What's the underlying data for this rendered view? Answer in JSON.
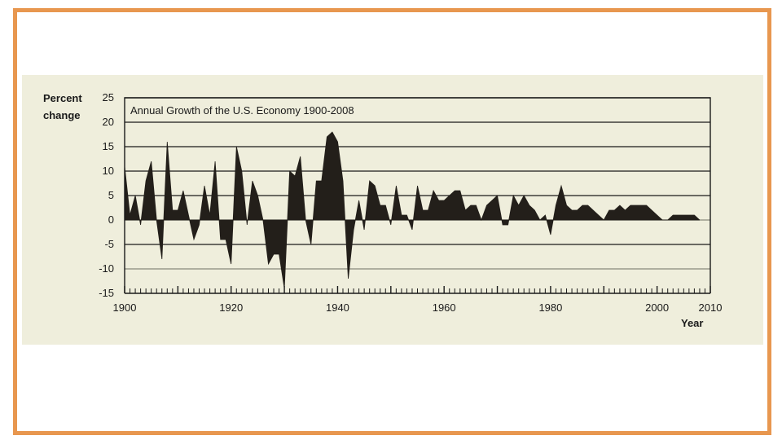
{
  "chart_data": {
    "type": "area",
    "title": "Annual Growth of the U.S. Economy 1900-2008",
    "ylabel_line1": "Percent",
    "ylabel_line2": "change",
    "xlabel": "Year",
    "xlim": [
      1900,
      2010
    ],
    "ylim": [
      -15,
      25
    ],
    "x_ticks": [
      1900,
      1920,
      1940,
      1960,
      1980,
      2000,
      2010
    ],
    "y_ticks": [
      25,
      20,
      15,
      10,
      5,
      0,
      -5,
      -10,
      -15
    ],
    "grid": true,
    "colors": {
      "fill": "#231F1A",
      "grid": "#1a1a1a",
      "background": "#EFEEDC",
      "frame": "#E8974F"
    },
    "series": [
      {
        "x": [
          1900,
          1901,
          1902,
          1903,
          1904,
          1905,
          1906,
          1907,
          1908,
          1909,
          1910,
          1911,
          1912,
          1913,
          1914,
          1915,
          1916,
          1917,
          1918,
          1919,
          1920,
          1921,
          1922,
          1923,
          1924,
          1925,
          1926,
          1927,
          1928,
          1929,
          1930,
          1931,
          1932,
          1933,
          1934,
          1935,
          1936,
          1937,
          1938,
          1939,
          1940,
          1941,
          1942,
          1943,
          1944,
          1945,
          1946,
          1947,
          1948,
          1949,
          1950,
          1951,
          1952,
          1953,
          1954,
          1955,
          1956,
          1957,
          1958,
          1959,
          1960,
          1961,
          1962,
          1963,
          1964,
          1965,
          1966,
          1967,
          1968,
          1969,
          1970,
          1971,
          1972,
          1973,
          1974,
          1975,
          1976,
          1977,
          1978,
          1979,
          1980,
          1981,
          1982,
          1983,
          1984,
          1985,
          1986,
          1987,
          1988,
          1989,
          1990,
          1991,
          1992,
          1993,
          1994,
          1995,
          1996,
          1997,
          1998,
          1999,
          2000,
          2001,
          2002,
          2003,
          2004,
          2005,
          2006,
          2007,
          2008
        ],
        "y": [
          11,
          1,
          5,
          -1,
          8,
          12,
          0,
          -8,
          16,
          2,
          2,
          6,
          1,
          -4,
          -1,
          7,
          1,
          12,
          -4,
          -4,
          -9,
          15,
          10,
          -1,
          8,
          5,
          0,
          -9,
          -7,
          -7,
          -14,
          10,
          9,
          13,
          0,
          -5,
          8,
          8,
          17,
          18,
          16,
          8,
          -12,
          -2,
          4,
          -2,
          8,
          7,
          3,
          3,
          -1,
          7,
          1,
          1,
          -2,
          7,
          2,
          2,
          6,
          4,
          4,
          5,
          6,
          6,
          2,
          3,
          3,
          0,
          3,
          4,
          5,
          -1,
          -1,
          5,
          3,
          5,
          3,
          2,
          0,
          1,
          -3,
          3,
          7,
          3,
          2,
          2,
          3,
          3,
          2,
          1,
          0,
          2,
          2,
          3,
          2,
          3,
          3,
          3,
          3,
          2,
          1,
          0,
          0,
          1,
          1,
          1,
          1,
          1,
          0
        ]
      }
    ]
  }
}
